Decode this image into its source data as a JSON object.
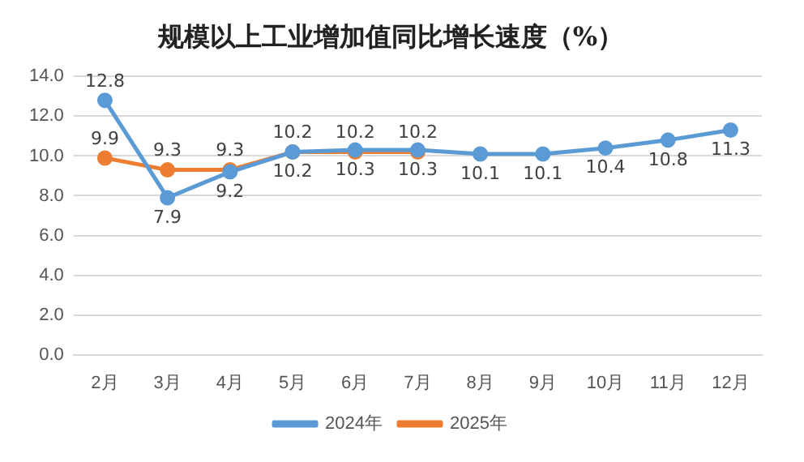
{
  "chart_data": {
    "type": "line",
    "title": "规模以上工业增加值同比增长速度（%）",
    "categories": [
      "2月",
      "3月",
      "4月",
      "5月",
      "6月",
      "7月",
      "8月",
      "9月",
      "10月",
      "11月",
      "12月"
    ],
    "series": [
      {
        "name": "2024年",
        "color": "#5b9bd5",
        "values": [
          12.8,
          7.9,
          9.2,
          10.2,
          10.3,
          10.3,
          10.1,
          10.1,
          10.4,
          10.8,
          11.3
        ]
      },
      {
        "name": "2025年",
        "color": "#ed7d31",
        "values": [
          9.9,
          9.3,
          9.3,
          10.2,
          10.2,
          10.2,
          null,
          null,
          null,
          null,
          null
        ]
      }
    ],
    "ylim": [
      0,
      14
    ],
    "yticks": [
      {
        "value": 0,
        "label": "0.0"
      },
      {
        "value": 2,
        "label": "2.0"
      },
      {
        "value": 4,
        "label": "4.0"
      },
      {
        "value": 6,
        "label": "6.0"
      },
      {
        "value": 8,
        "label": "8.0"
      },
      {
        "value": 10,
        "label": "10.0"
      },
      {
        "value": 12,
        "label": "12.0"
      },
      {
        "value": 14,
        "label": "14.0"
      }
    ],
    "grid": "y",
    "legend": "bottom",
    "marker": "circle",
    "line_style": "solid",
    "data_labels": true
  }
}
